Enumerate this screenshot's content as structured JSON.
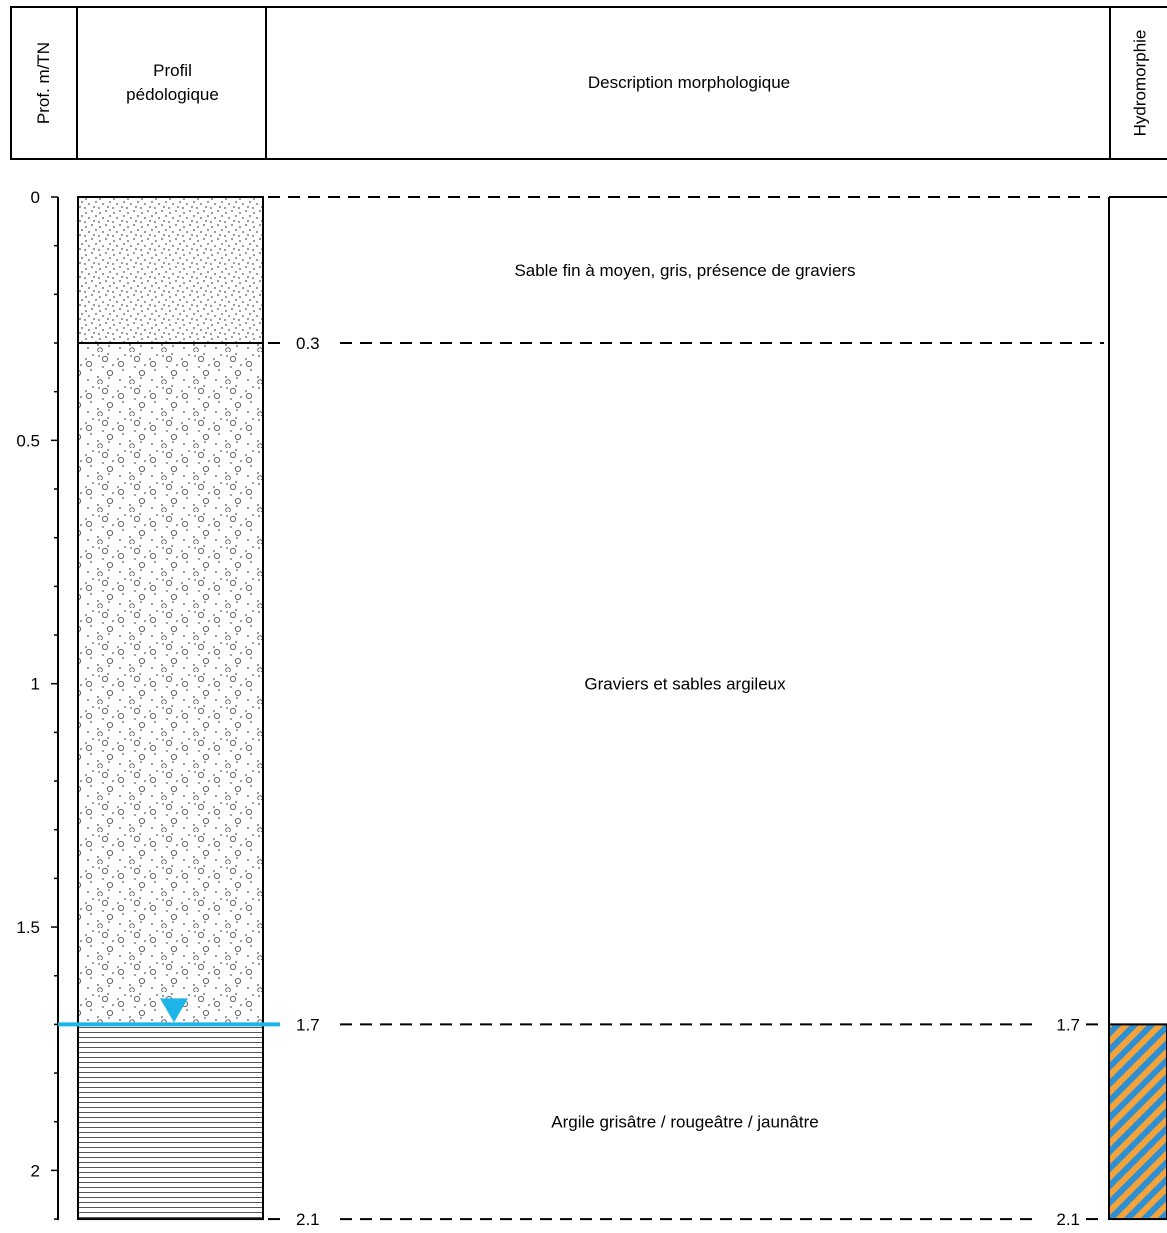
{
  "header": {
    "depth_label": "Prof. m/TN",
    "profile_label_line1": "Profil",
    "profile_label_line2": "pédologique",
    "description_label": "Description morphologique",
    "hydromorphy_label": "Hydromorphie"
  },
  "depth_axis": {
    "min": 0,
    "max": 2.1,
    "major_ticks": [
      0,
      0.5,
      1,
      1.5,
      2
    ],
    "major_tick_labels": [
      "0",
      "0.5",
      "1",
      "1.5",
      "2"
    ],
    "minor_step": 0.1
  },
  "layers": [
    {
      "top": 0,
      "bottom": 0.3,
      "pattern": "fine-sand",
      "description": "Sable fin à moyen, gris, présence de graviers"
    },
    {
      "top": 0.3,
      "bottom": 1.7,
      "pattern": "gravel-sand",
      "description": "Graviers et sables argileux"
    },
    {
      "top": 1.7,
      "bottom": 2.1,
      "pattern": "clay",
      "description": "Argile grisâtre / rougeâtre / jaunâtre"
    }
  ],
  "boundary_labels": [
    {
      "depth": 0.3,
      "text": "0.3"
    },
    {
      "depth": 1.7,
      "text": "1.7"
    },
    {
      "depth": 2.1,
      "text": "2.1"
    }
  ],
  "hydromorphy_labels": [
    {
      "depth": 1.7,
      "text": "1.7"
    },
    {
      "depth": 2.1,
      "text": "2.1"
    }
  ],
  "water_table": {
    "depth": 1.7,
    "color": "#1fb4e8",
    "icon": "water-level-triangle-icon"
  },
  "hydromorphy_zone": {
    "top": 1.7,
    "bottom": 2.1,
    "colors": [
      "#2e8fd3",
      "#f3a33a"
    ],
    "pattern": "diagonal-stripes"
  }
}
